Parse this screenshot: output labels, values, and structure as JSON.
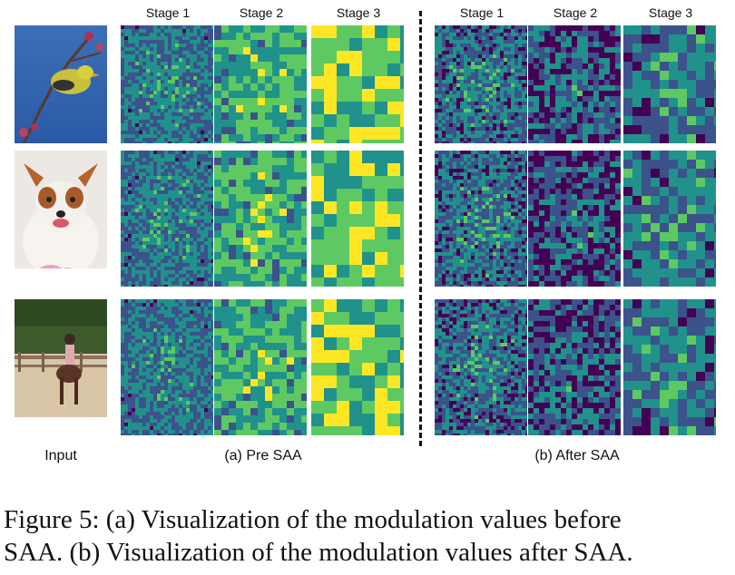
{
  "figure": {
    "stage_headers": [
      "Stage 1",
      "Stage 2",
      "Stage 3"
    ],
    "input_label": "Input",
    "panel_a_label": "(a) Pre SAA",
    "panel_b_label": "(b) After SAA",
    "caption_line1": "Figure 5: (a) Visualization of the modulation values before",
    "caption_line2": "SAA. (b) Visualization of the modulation values after SAA.",
    "colormap": [
      "#440154",
      "#3b528b",
      "#21918c",
      "#5ec962",
      "#fde725"
    ]
  }
}
